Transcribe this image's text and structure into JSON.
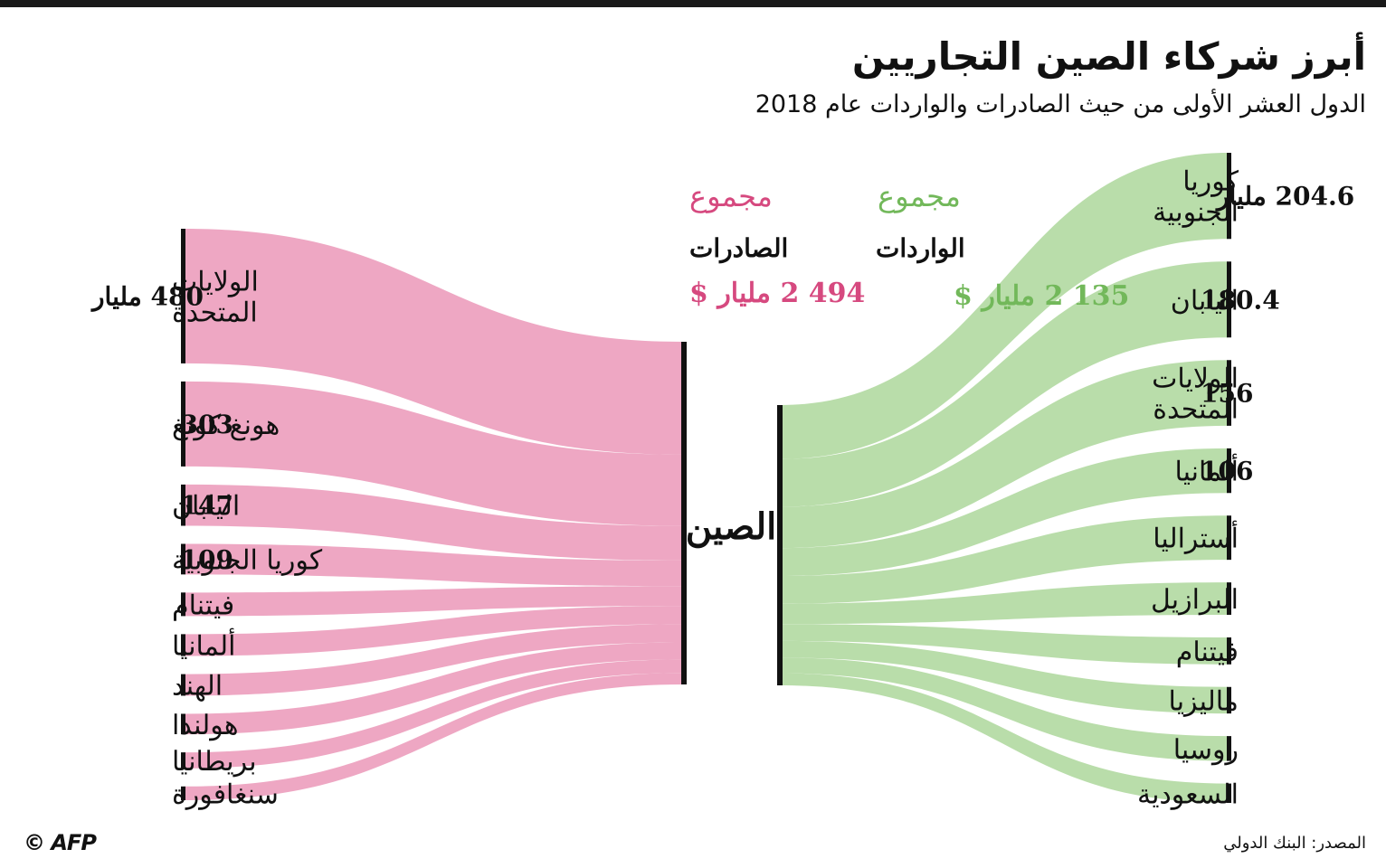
{
  "title": "أبرز شركاء الصين التجاريين",
  "subtitle": "الدول العشر الأولى من حيث الصادرات والواردات عام 2018",
  "center": {
    "label": "الصين"
  },
  "colors": {
    "exports": "#eea7c3",
    "imports": "#b9ddaa",
    "exports_text": "#d6497f",
    "imports_text": "#72b85a",
    "bar": "#111111"
  },
  "exports_total": {
    "word": "مجموع",
    "label": "الصادرات",
    "amount": "494 2 مليار $"
  },
  "imports_total": {
    "word": "مجموع",
    "label": "الواردات",
    "amount": "135 2 مليار $"
  },
  "chart_data": {
    "type": "sankey",
    "exports": {
      "total": 2494,
      "flows": [
        {
          "country": [
            "الولايات",
            "المتحدة"
          ],
          "value": 480,
          "label": "480 مليار"
        },
        {
          "country": [
            "هونغ كونغ"
          ],
          "value": 303,
          "label": "303"
        },
        {
          "country": [
            "اليابان"
          ],
          "value": 147,
          "label": "147"
        },
        {
          "country": [
            "كوريا الجنوبية"
          ],
          "value": 109,
          "label": "109"
        },
        {
          "country": [
            "فيتنام"
          ],
          "value": 84,
          "label": ""
        },
        {
          "country": [
            "ألمانيا"
          ],
          "value": 78,
          "label": ""
        },
        {
          "country": [
            "الهند"
          ],
          "value": 77,
          "label": ""
        },
        {
          "country": [
            "هولندا"
          ],
          "value": 73,
          "label": ""
        },
        {
          "country": [
            "بريطانيا"
          ],
          "value": 57,
          "label": ""
        },
        {
          "country": [
            "سنغافورة"
          ],
          "value": 49,
          "label": ""
        }
      ]
    },
    "imports": {
      "total": 2135,
      "flows": [
        {
          "country": [
            "كوريا",
            "الجنوبية"
          ],
          "value": 204.6,
          "label": "204.6 مليار"
        },
        {
          "country": [
            "اليابان"
          ],
          "value": 180.4,
          "label": "180.4"
        },
        {
          "country": [
            "الولايات",
            "المتحدة"
          ],
          "value": 156,
          "label": "156"
        },
        {
          "country": [
            "ألمانيا"
          ],
          "value": 106,
          "label": "106"
        },
        {
          "country": [
            "أستراليا"
          ],
          "value": 105,
          "label": ""
        },
        {
          "country": [
            "البرازيل"
          ],
          "value": 77,
          "label": ""
        },
        {
          "country": [
            "فيتنام"
          ],
          "value": 64,
          "label": ""
        },
        {
          "country": [
            "ماليزيا"
          ],
          "value": 63,
          "label": ""
        },
        {
          "country": [
            "روسيا"
          ],
          "value": 59,
          "label": ""
        },
        {
          "country": [
            "السعودية"
          ],
          "value": 46,
          "label": ""
        }
      ]
    }
  },
  "source": "المصدر: البنك الدولي",
  "logo": "AFP"
}
